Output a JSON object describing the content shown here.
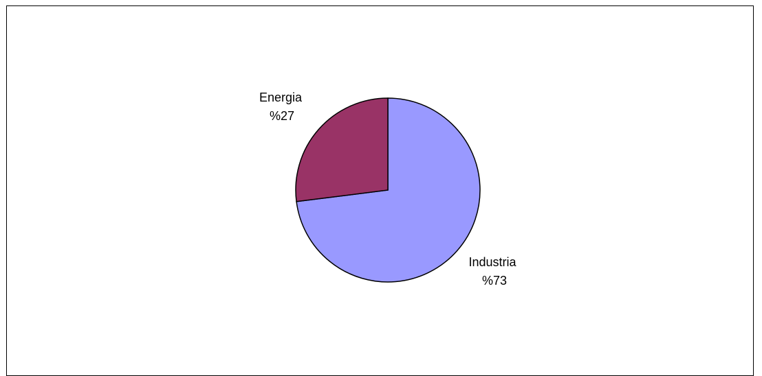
{
  "chart_data": {
    "type": "pie",
    "title": "",
    "slices": [
      {
        "label": "Industria",
        "percent_label": "%73",
        "value": 73,
        "color": "#9999ff"
      },
      {
        "label": "Energia",
        "percent_label": "%27",
        "value": 27,
        "color": "#993366"
      }
    ],
    "legend": "none"
  }
}
